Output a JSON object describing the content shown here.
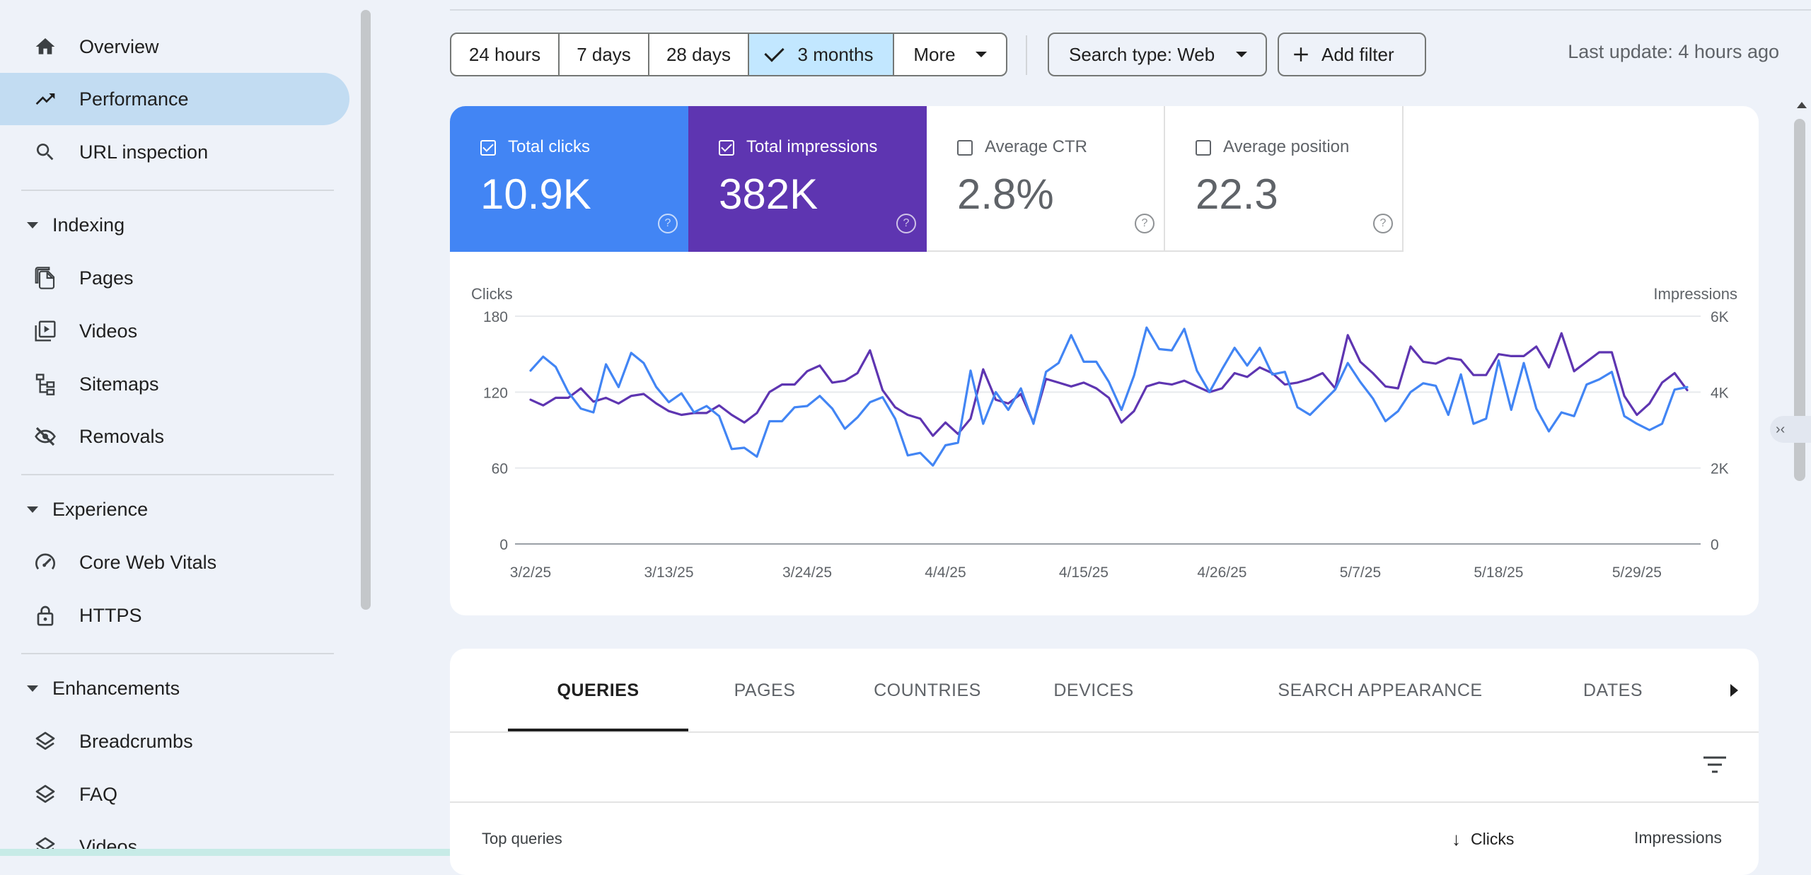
{
  "sidebar": {
    "top_items": [
      {
        "label": "Overview",
        "icon": "home-icon"
      },
      {
        "label": "Performance",
        "icon": "trending-up-icon",
        "active": true
      },
      {
        "label": "URL inspection",
        "icon": "search-icon"
      }
    ],
    "sections": [
      {
        "label": "Indexing",
        "items": [
          {
            "label": "Pages",
            "icon": "pages-icon"
          },
          {
            "label": "Videos",
            "icon": "video-library-icon"
          },
          {
            "label": "Sitemaps",
            "icon": "sitemap-icon"
          },
          {
            "label": "Removals",
            "icon": "visibility-off-icon"
          }
        ]
      },
      {
        "label": "Experience",
        "items": [
          {
            "label": "Core Web Vitals",
            "icon": "speed-gauge-icon"
          },
          {
            "label": "HTTPS",
            "icon": "lock-icon"
          }
        ]
      },
      {
        "label": "Enhancements",
        "items": [
          {
            "label": "Breadcrumbs",
            "icon": "layers-icon"
          },
          {
            "label": "FAQ",
            "icon": "layers-icon"
          },
          {
            "label": "Videos",
            "icon": "layers-icon"
          }
        ]
      }
    ]
  },
  "toolbar": {
    "date_ranges": [
      "24 hours",
      "7 days",
      "28 days",
      "3 months"
    ],
    "selected_range": "3 months",
    "more_label": "More",
    "search_type_label": "Search type: Web",
    "add_filter_label": "Add filter",
    "last_update": "Last update: 4 hours ago"
  },
  "metrics": {
    "clicks": {
      "label": "Total clicks",
      "value": "10.9K",
      "checked": true,
      "color": "#4285f4"
    },
    "impressions": {
      "label": "Total impressions",
      "value": "382K",
      "checked": true,
      "color": "#5e35b1"
    },
    "ctr": {
      "label": "Average CTR",
      "value": "2.8%",
      "checked": false
    },
    "position": {
      "label": "Average position",
      "value": "22.3",
      "checked": false
    },
    "help_glyph": "?"
  },
  "chart_data": {
    "type": "line",
    "left_axis_label": "Clicks",
    "right_axis_label": "Impressions",
    "left_ticks": [
      "0",
      "60",
      "120",
      "180"
    ],
    "right_ticks": [
      "0",
      "2K",
      "4K",
      "6K"
    ],
    "left_ylim": [
      0,
      180
    ],
    "right_ylim": [
      0,
      6000
    ],
    "x_tick_labels": [
      "3/2/25",
      "3/13/25",
      "3/24/25",
      "4/4/25",
      "4/15/25",
      "4/26/25",
      "5/7/25",
      "5/18/25",
      "5/29/25"
    ],
    "x_start": "3/2/25",
    "x_end": "5/31/25",
    "grid": true,
    "legend": "none",
    "series": [
      {
        "name": "Clicks",
        "axis": "left",
        "color": "#4285f4",
        "values": [
          137,
          148,
          140,
          120,
          107,
          104,
          142,
          124,
          151,
          143,
          124,
          112,
          119,
          104,
          109,
          101,
          75,
          76,
          69,
          97,
          97,
          108,
          109,
          117,
          107,
          91,
          100,
          112,
          116,
          99,
          70,
          72,
          62,
          78,
          80,
          137,
          95,
          120,
          106,
          123,
          95,
          136,
          143,
          165,
          144,
          144,
          128,
          106,
          133,
          171,
          154,
          153,
          170,
          137,
          120,
          138,
          155,
          141,
          155,
          134,
          136,
          108,
          102,
          112,
          122,
          143,
          128,
          115,
          97,
          105,
          120,
          127,
          125,
          102,
          134,
          95,
          99,
          145,
          106,
          143,
          107,
          89,
          104,
          101,
          126,
          130,
          136,
          101,
          95,
          90,
          95,
          122,
          124
        ]
      },
      {
        "name": "Impressions",
        "axis": "right",
        "color": "#5e35b1",
        "values": [
          3800,
          3650,
          3850,
          3850,
          4100,
          3750,
          3850,
          3700,
          3900,
          3950,
          3700,
          3500,
          3400,
          3450,
          3450,
          3650,
          3400,
          3200,
          3450,
          4000,
          4200,
          4200,
          4550,
          4700,
          4250,
          4300,
          4500,
          5100,
          4050,
          3600,
          3400,
          3300,
          2850,
          3200,
          2900,
          3300,
          4600,
          3800,
          3700,
          3950,
          3200,
          4350,
          4250,
          4150,
          4250,
          4100,
          3850,
          3200,
          3500,
          4150,
          4250,
          4200,
          4300,
          4150,
          4000,
          4100,
          4500,
          4400,
          4650,
          4500,
          4200,
          4250,
          4350,
          4500,
          4100,
          5500,
          4800,
          4500,
          4150,
          4100,
          5200,
          4800,
          4750,
          4900,
          4850,
          4450,
          4450,
          5000,
          4950,
          4950,
          5200,
          4650,
          5550,
          4550,
          4800,
          5050,
          5050,
          3900,
          3400,
          3700,
          4250,
          4500,
          4050
        ]
      }
    ]
  },
  "table": {
    "tabs": [
      "QUERIES",
      "PAGES",
      "COUNTRIES",
      "DEVICES",
      "SEARCH APPEARANCE",
      "DATES"
    ],
    "active_tab": "QUERIES",
    "section_label": "Top queries",
    "columns": {
      "clicks": "Clicks",
      "impressions": "Impressions"
    },
    "sort_glyph": "↓"
  },
  "side_panel_glyph": "›‹"
}
